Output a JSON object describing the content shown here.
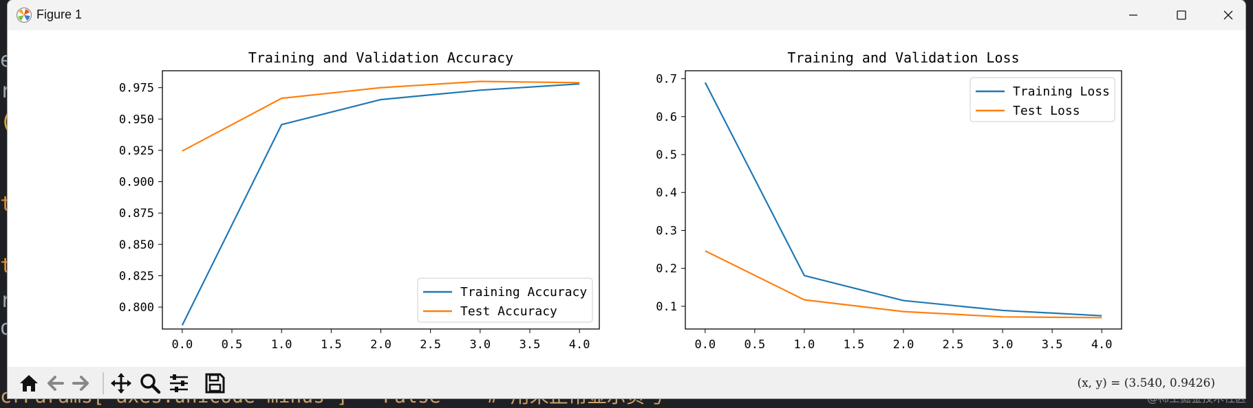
{
  "window": {
    "title": "Figure 1"
  },
  "background": {
    "code_line": "crParams[ axes.unicode minus ] = False    # 用来正常显示负号",
    "watermark": "@稀土掘金技术社区"
  },
  "toolbar": {
    "tools": [
      "home-icon",
      "back-icon",
      "forward-icon",
      "pan-icon",
      "zoom-icon",
      "configure-subplots-icon",
      "save-icon"
    ],
    "coord_readout": "(x, y) = (3.540, 0.9426)"
  },
  "colors": {
    "series_blue": "#1f77b4",
    "series_orange": "#ff7f0e"
  },
  "chart_data": [
    {
      "type": "line",
      "title": "Training and Validation Accuracy",
      "xlabel": "",
      "ylabel": "",
      "x": [
        0,
        1,
        2,
        3,
        4
      ],
      "xticks": [
        "0.0",
        "0.5",
        "1.0",
        "1.5",
        "2.0",
        "2.5",
        "3.0",
        "3.5",
        "4.0"
      ],
      "xtick_values": [
        0,
        0.5,
        1,
        1.5,
        2,
        2.5,
        3,
        3.5,
        4
      ],
      "yticks": [
        "0.800",
        "0.825",
        "0.850",
        "0.875",
        "0.900",
        "0.925",
        "0.950",
        "0.975"
      ],
      "ytick_values": [
        0.8,
        0.825,
        0.85,
        0.875,
        0.9,
        0.925,
        0.95,
        0.975
      ],
      "xlim": [
        -0.2,
        4.2
      ],
      "ylim": [
        0.7825,
        0.9885
      ],
      "legend": "lower-right",
      "series": [
        {
          "name": "Training Accuracy",
          "color": "#1f77b4",
          "values": [
            0.7855,
            0.9455,
            0.9655,
            0.973,
            0.978
          ]
        },
        {
          "name": "Test Accuracy",
          "color": "#ff7f0e",
          "values": [
            0.9245,
            0.9665,
            0.975,
            0.98,
            0.979
          ]
        }
      ]
    },
    {
      "type": "line",
      "title": "Training and Validation Loss",
      "xlabel": "",
      "ylabel": "",
      "x": [
        0,
        1,
        2,
        3,
        4
      ],
      "xticks": [
        "0.0",
        "0.5",
        "1.0",
        "1.5",
        "2.0",
        "2.5",
        "3.0",
        "3.5",
        "4.0"
      ],
      "xtick_values": [
        0,
        0.5,
        1,
        1.5,
        2,
        2.5,
        3,
        3.5,
        4
      ],
      "yticks": [
        "0.1",
        "0.2",
        "0.3",
        "0.4",
        "0.5",
        "0.6",
        "0.7"
      ],
      "ytick_values": [
        0.1,
        0.2,
        0.3,
        0.4,
        0.5,
        0.6,
        0.7
      ],
      "xlim": [
        -0.2,
        4.2
      ],
      "ylim": [
        0.04,
        0.721
      ],
      "legend": "upper-right",
      "series": [
        {
          "name": "Training Loss",
          "color": "#1f77b4",
          "values": [
            0.69,
            0.181,
            0.115,
            0.089,
            0.075
          ]
        },
        {
          "name": "Test Loss",
          "color": "#ff7f0e",
          "values": [
            0.246,
            0.117,
            0.086,
            0.072,
            0.07
          ]
        }
      ]
    }
  ]
}
